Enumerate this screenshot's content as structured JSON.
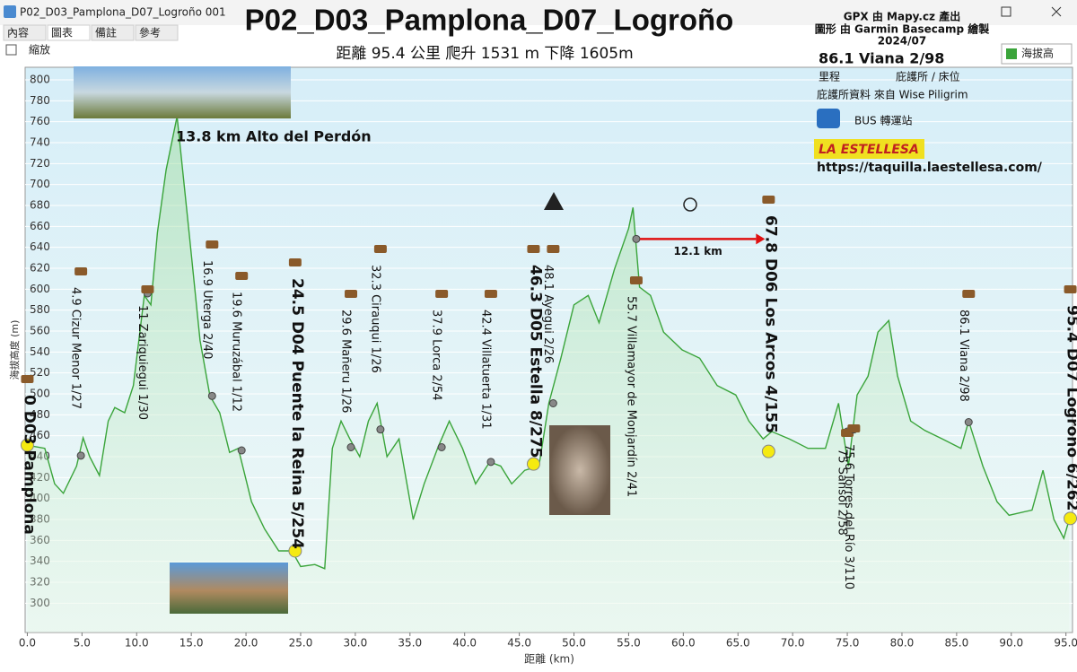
{
  "window": {
    "title": "P02_D03_Pamplona_D07_Logroño 001",
    "tabs": [
      "內容",
      "圖表",
      "備註",
      "參考"
    ],
    "zoom": "縮放"
  },
  "chart_data": {
    "type": "area",
    "title": "P02_D03_Pamplona_D07_Logroño",
    "subtitle": "距離 95.4 公里 爬升 1531 m 下降 1605m",
    "credits": [
      "GPX 由 Mapy.cz  產出",
      "圖形 由 Garmin Basecamp 繪製",
      "2024/07"
    ],
    "headline": "86.1  Viana  2/98",
    "notes": [
      "里程",
      "庇護所 / 床位",
      "庇護所資料 來自 Wise Piligrim",
      "BUS 轉運站"
    ],
    "brand": "LA ESTELLESA",
    "url": "https://taquilla.laestellesa.com/",
    "peak_label": "13.8 km Alto del Perdón",
    "arrow_label": "12.1 km",
    "xlabel": "距離   (km)",
    "ylabel": "海拔高度 (m)",
    "xlim": [
      -0.2,
      95.6
    ],
    "ylim": [
      272,
      812
    ],
    "grid": true,
    "xticks": [
      {
        "value": 0,
        "label": "0.0"
      },
      {
        "value": 5,
        "label": "5.0"
      },
      {
        "value": 10,
        "label": "10.0"
      },
      {
        "value": 15,
        "label": "15.0"
      },
      {
        "value": 20,
        "label": "20.0"
      },
      {
        "value": 25,
        "label": "25.0"
      },
      {
        "value": 30,
        "label": "30.0"
      },
      {
        "value": 35,
        "label": "35.0"
      },
      {
        "value": 40,
        "label": "40.0"
      },
      {
        "value": 45,
        "label": "45.0"
      },
      {
        "value": 50,
        "label": "50.0"
      },
      {
        "value": 55,
        "label": "55.0"
      },
      {
        "value": 60,
        "label": "60.0"
      },
      {
        "value": 65,
        "label": "65.0"
      },
      {
        "value": 70,
        "label": "70.0"
      },
      {
        "value": 75,
        "label": "75.0"
      },
      {
        "value": 80,
        "label": "80.0"
      },
      {
        "value": 85,
        "label": "85.0"
      },
      {
        "value": 90,
        "label": "90.0"
      },
      {
        "value": 95,
        "label": "95.0"
      }
    ],
    "yticks": [
      300,
      320,
      340,
      360,
      380,
      400,
      420,
      440,
      460,
      480,
      500,
      520,
      540,
      560,
      580,
      600,
      620,
      640,
      660,
      680,
      700,
      720,
      740,
      760,
      780,
      800
    ],
    "x": [
      0,
      1.6,
      2.5,
      3.3,
      4.5,
      5.1,
      5.7,
      6.6,
      7.4,
      8.0,
      8.9,
      9.7,
      10.7,
      11.3,
      11.9,
      12.7,
      13.7,
      14.8,
      15.8,
      16.7,
      17.6,
      18.5,
      19.3,
      20.5,
      21.7,
      23.0,
      24.2,
      25.0,
      26.3,
      27.2,
      27.9,
      28.7,
      29.5,
      30.4,
      31.2,
      32.0,
      32.9,
      34.0,
      35.3,
      36.3,
      37.6,
      38.6,
      39.8,
      41.0,
      42.3,
      43.3,
      44.3,
      45.5,
      46.8,
      47.7,
      48.8,
      50.0,
      51.3,
      52.3,
      53.7,
      55.0,
      55.4,
      56.0,
      57.0,
      58.2,
      59.9,
      61.5,
      63.1,
      64.8,
      66.0,
      67.3,
      68.1,
      69.7,
      71.4,
      73.0,
      74.2,
      75.1,
      75.9,
      76.9,
      77.8,
      78.8,
      79.6,
      80.8,
      82.1,
      83.7,
      85.4,
      86.1,
      87.4,
      88.7,
      89.8,
      91.9,
      92.9,
      93.9,
      94.8,
      95.3
    ],
    "series": [
      {
        "name": "海拔高",
        "color": "#3aa43a",
        "values": [
          451,
          448,
          414,
          405,
          431,
          458,
          440,
          422,
          474,
          487,
          482,
          508,
          594,
          585,
          654,
          714,
          765,
          654,
          551,
          498,
          482,
          444,
          448,
          397,
          371,
          350,
          350,
          335,
          337,
          333,
          448,
          474,
          457,
          440,
          474,
          491,
          440,
          457,
          380,
          414,
          450,
          474,
          448,
          414,
          435,
          431,
          414,
          427,
          431,
          491,
          534,
          585,
          594,
          568,
          619,
          658,
          678,
          602,
          594,
          559,
          542,
          534,
          508,
          499,
          474,
          457,
          464,
          457,
          448,
          448,
          491,
          431,
          499,
          517,
          559,
          570,
          517,
          474,
          465,
          457,
          448,
          474,
          431,
          397,
          384,
          389,
          427,
          380,
          362,
          380
        ]
      }
    ],
    "waypoints": [
      {
        "km": 0,
        "elevation": 451,
        "label": "0  D03 Pamplona",
        "color": "#f5ea10"
      },
      {
        "km": 4.9,
        "elevation": 441,
        "label": "4.9  Cizur Menor  1/27",
        "color": "#888888"
      },
      {
        "km": 11,
        "elevation": 596,
        "label": "11  Zariquiegui  1/30",
        "color": "#888888"
      },
      {
        "km": 16.9,
        "elevation": 498,
        "label": "16.9  Uterga  2/40",
        "color": "#888888"
      },
      {
        "km": 19.6,
        "elevation": 446,
        "label": "19.6  Muruzábal  1/12",
        "color": "#888888"
      },
      {
        "km": 24.5,
        "elevation": 350,
        "label": "24.5  D04 Puente la Reina  5/254",
        "color": "#f5ea10"
      },
      {
        "km": 29.6,
        "elevation": 449,
        "label": "29.6  Mañeru  1/26",
        "color": "#888888"
      },
      {
        "km": 32.3,
        "elevation": 466,
        "label": "32.3  Cirauqui  1/26",
        "color": "#888888"
      },
      {
        "km": 37.9,
        "elevation": 449,
        "label": "37.9  Lorca  2/54",
        "color": "#888888"
      },
      {
        "km": 42.4,
        "elevation": 435,
        "label": "42.4  Villatuerta  1/31",
        "color": "#888888"
      },
      {
        "km": 46.3,
        "elevation": 433,
        "label": "46.3  D05 Estella  8/275",
        "color": "#f5ea10"
      },
      {
        "km": 48.1,
        "elevation": 491,
        "label": "48.1  Ayegui  2/26",
        "color": "#888888"
      },
      {
        "km": 55.7,
        "elevation": 648,
        "label": "55.7  Villamayor de Monjardín  2/41",
        "color": "#888888"
      },
      {
        "km": 67.8,
        "elevation": 445,
        "label": "67.8  D06  Los Arcos  4/155",
        "color": "#f5ea10"
      },
      {
        "km": 75,
        "elevation": 464,
        "label": "75  Sansol  2/58",
        "color": "#888888"
      },
      {
        "km": 75.6,
        "elevation": 466,
        "label": "75.6  Torres del Río  3/110",
        "color": "#888888"
      },
      {
        "km": 86.1,
        "elevation": 473,
        "label": "86.1  Viana  2/98",
        "color": "#888888"
      },
      {
        "km": 95.4,
        "elevation": 381,
        "label": "95.4  D07  Logroño  6/262",
        "color": "#f5ea10"
      }
    ]
  }
}
